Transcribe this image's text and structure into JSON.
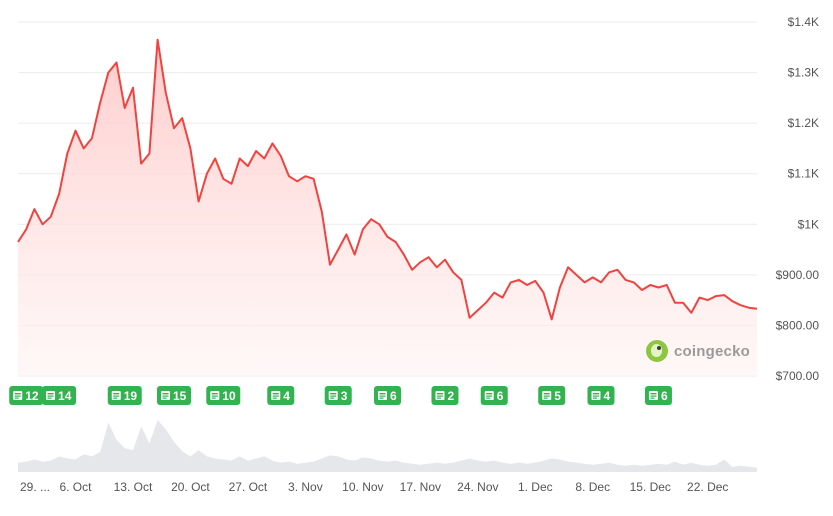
{
  "watermark": {
    "text": "coingecko"
  },
  "colors": {
    "line": "#f0433f",
    "fill_top": "#ffc7c6",
    "fill_bottom": "#fff3f3",
    "grid": "#ececec",
    "badge": "#32b34f",
    "volume": "#e6e7ea",
    "axis_text": "#555555"
  },
  "chart_data": {
    "type": "line",
    "title": "",
    "xlabel": "",
    "ylabel": "",
    "ylim": [
      700,
      1400
    ],
    "y_ticks": [
      "$700.00",
      "$800.00",
      "$900.00",
      "$1K",
      "$1.1K",
      "$1.2K",
      "$1.3K",
      "$1.4K"
    ],
    "y_tick_values": [
      700,
      800,
      900,
      1000,
      1100,
      1200,
      1300,
      1400
    ],
    "x_range": [
      "2024-09-29",
      "2024-12-28"
    ],
    "x_ticks": [
      {
        "date": "2024-09-29",
        "label": "29. ..."
      },
      {
        "date": "2024-10-06",
        "label": "6. Oct"
      },
      {
        "date": "2024-10-13",
        "label": "13. Oct"
      },
      {
        "date": "2024-10-20",
        "label": "20. Oct"
      },
      {
        "date": "2024-10-27",
        "label": "27. Oct"
      },
      {
        "date": "2024-11-03",
        "label": "3. Nov"
      },
      {
        "date": "2024-11-10",
        "label": "10. Nov"
      },
      {
        "date": "2024-11-17",
        "label": "17. Nov"
      },
      {
        "date": "2024-11-24",
        "label": "24. Nov"
      },
      {
        "date": "2024-12-01",
        "label": "1. Dec"
      },
      {
        "date": "2024-12-08",
        "label": "8. Dec"
      },
      {
        "date": "2024-12-15",
        "label": "15. Dec"
      },
      {
        "date": "2024-12-22",
        "label": "22. Dec"
      }
    ],
    "grid": true,
    "series": [
      {
        "points": [
          [
            "2024-09-29",
            965
          ],
          [
            "2024-09-30",
            990
          ],
          [
            "2024-10-01",
            1030
          ],
          [
            "2024-10-02",
            1000
          ],
          [
            "2024-10-03",
            1015
          ],
          [
            "2024-10-04",
            1060
          ],
          [
            "2024-10-05",
            1140
          ],
          [
            "2024-10-06",
            1185
          ],
          [
            "2024-10-07",
            1150
          ],
          [
            "2024-10-08",
            1170
          ],
          [
            "2024-10-09",
            1240
          ],
          [
            "2024-10-10",
            1300
          ],
          [
            "2024-10-11",
            1320
          ],
          [
            "2024-10-12",
            1230
          ],
          [
            "2024-10-13",
            1270
          ],
          [
            "2024-10-14",
            1120
          ],
          [
            "2024-10-15",
            1140
          ],
          [
            "2024-10-16",
            1365
          ],
          [
            "2024-10-17",
            1260
          ],
          [
            "2024-10-18",
            1190
          ],
          [
            "2024-10-19",
            1210
          ],
          [
            "2024-10-20",
            1150
          ],
          [
            "2024-10-21",
            1045
          ],
          [
            "2024-10-22",
            1100
          ],
          [
            "2024-10-23",
            1130
          ],
          [
            "2024-10-24",
            1090
          ],
          [
            "2024-10-25",
            1080
          ],
          [
            "2024-10-26",
            1130
          ],
          [
            "2024-10-27",
            1115
          ],
          [
            "2024-10-28",
            1145
          ],
          [
            "2024-10-29",
            1130
          ],
          [
            "2024-10-30",
            1160
          ],
          [
            "2024-10-31",
            1135
          ],
          [
            "2024-11-01",
            1095
          ],
          [
            "2024-11-02",
            1085
          ],
          [
            "2024-11-03",
            1095
          ],
          [
            "2024-11-04",
            1090
          ],
          [
            "2024-11-05",
            1025
          ],
          [
            "2024-11-06",
            920
          ],
          [
            "2024-11-07",
            950
          ],
          [
            "2024-11-08",
            980
          ],
          [
            "2024-11-09",
            940
          ],
          [
            "2024-11-10",
            990
          ],
          [
            "2024-11-11",
            1010
          ],
          [
            "2024-11-12",
            1000
          ],
          [
            "2024-11-13",
            975
          ],
          [
            "2024-11-14",
            965
          ],
          [
            "2024-11-15",
            940
          ],
          [
            "2024-11-16",
            910
          ],
          [
            "2024-11-17",
            925
          ],
          [
            "2024-11-18",
            935
          ],
          [
            "2024-11-19",
            915
          ],
          [
            "2024-11-20",
            930
          ],
          [
            "2024-11-21",
            905
          ],
          [
            "2024-11-22",
            890
          ],
          [
            "2024-11-23",
            815
          ],
          [
            "2024-11-24",
            830
          ],
          [
            "2024-11-25",
            845
          ],
          [
            "2024-11-26",
            865
          ],
          [
            "2024-11-27",
            855
          ],
          [
            "2024-11-28",
            885
          ],
          [
            "2024-11-29",
            890
          ],
          [
            "2024-11-30",
            880
          ],
          [
            "2024-12-01",
            888
          ],
          [
            "2024-12-02",
            865
          ],
          [
            "2024-12-03",
            812
          ],
          [
            "2024-12-04",
            875
          ],
          [
            "2024-12-05",
            915
          ],
          [
            "2024-12-06",
            900
          ],
          [
            "2024-12-07",
            885
          ],
          [
            "2024-12-08",
            895
          ],
          [
            "2024-12-09",
            885
          ],
          [
            "2024-12-10",
            905
          ],
          [
            "2024-12-11",
            910
          ],
          [
            "2024-12-12",
            890
          ],
          [
            "2024-12-13",
            885
          ],
          [
            "2024-12-14",
            870
          ],
          [
            "2024-12-15",
            880
          ],
          [
            "2024-12-16",
            875
          ],
          [
            "2024-12-17",
            880
          ],
          [
            "2024-12-18",
            845
          ],
          [
            "2024-12-19",
            845
          ],
          [
            "2024-12-20",
            825
          ],
          [
            "2024-12-21",
            855
          ],
          [
            "2024-12-22",
            850
          ],
          [
            "2024-12-23",
            858
          ],
          [
            "2024-12-24",
            860
          ],
          [
            "2024-12-25",
            848
          ],
          [
            "2024-12-26",
            840
          ],
          [
            "2024-12-27",
            835
          ],
          [
            "2024-12-28",
            833
          ]
        ]
      }
    ],
    "news_badges": [
      {
        "date": "2024-09-30",
        "count": "12"
      },
      {
        "date": "2024-10-04",
        "count": "14"
      },
      {
        "date": "2024-10-12",
        "count": "19"
      },
      {
        "date": "2024-10-18",
        "count": "15"
      },
      {
        "date": "2024-10-24",
        "count": "10"
      },
      {
        "date": "2024-10-31",
        "count": "4"
      },
      {
        "date": "2024-11-07",
        "count": "3"
      },
      {
        "date": "2024-11-13",
        "count": "6"
      },
      {
        "date": "2024-11-20",
        "count": "2"
      },
      {
        "date": "2024-11-26",
        "count": "6"
      },
      {
        "date": "2024-12-03",
        "count": "5"
      },
      {
        "date": "2024-12-09",
        "count": "4"
      },
      {
        "date": "2024-12-16",
        "count": "6"
      }
    ],
    "volume": {
      "points": [
        [
          "2024-09-29",
          0.18
        ],
        [
          "2024-09-30",
          0.2
        ],
        [
          "2024-10-01",
          0.24
        ],
        [
          "2024-10-02",
          0.2
        ],
        [
          "2024-10-03",
          0.22
        ],
        [
          "2024-10-04",
          0.3
        ],
        [
          "2024-10-05",
          0.26
        ],
        [
          "2024-10-06",
          0.24
        ],
        [
          "2024-10-07",
          0.34
        ],
        [
          "2024-10-08",
          0.3
        ],
        [
          "2024-10-09",
          0.38
        ],
        [
          "2024-10-10",
          0.95
        ],
        [
          "2024-10-11",
          0.62
        ],
        [
          "2024-10-12",
          0.46
        ],
        [
          "2024-10-13",
          0.42
        ],
        [
          "2024-10-14",
          0.88
        ],
        [
          "2024-10-15",
          0.55
        ],
        [
          "2024-10-16",
          1.0
        ],
        [
          "2024-10-17",
          0.82
        ],
        [
          "2024-10-18",
          0.58
        ],
        [
          "2024-10-19",
          0.4
        ],
        [
          "2024-10-20",
          0.3
        ],
        [
          "2024-10-21",
          0.42
        ],
        [
          "2024-10-22",
          0.3
        ],
        [
          "2024-10-23",
          0.26
        ],
        [
          "2024-10-24",
          0.24
        ],
        [
          "2024-10-25",
          0.22
        ],
        [
          "2024-10-26",
          0.3
        ],
        [
          "2024-10-27",
          0.22
        ],
        [
          "2024-10-28",
          0.26
        ],
        [
          "2024-10-29",
          0.3
        ],
        [
          "2024-10-30",
          0.22
        ],
        [
          "2024-10-31",
          0.18
        ],
        [
          "2024-11-01",
          0.2
        ],
        [
          "2024-11-02",
          0.16
        ],
        [
          "2024-11-03",
          0.18
        ],
        [
          "2024-11-04",
          0.2
        ],
        [
          "2024-11-05",
          0.26
        ],
        [
          "2024-11-06",
          0.32
        ],
        [
          "2024-11-07",
          0.3
        ],
        [
          "2024-11-08",
          0.24
        ],
        [
          "2024-11-09",
          0.22
        ],
        [
          "2024-11-10",
          0.28
        ],
        [
          "2024-11-11",
          0.26
        ],
        [
          "2024-11-12",
          0.22
        ],
        [
          "2024-11-13",
          0.2
        ],
        [
          "2024-11-14",
          0.22
        ],
        [
          "2024-11-15",
          0.18
        ],
        [
          "2024-11-16",
          0.16
        ],
        [
          "2024-11-17",
          0.14
        ],
        [
          "2024-11-18",
          0.16
        ],
        [
          "2024-11-19",
          0.18
        ],
        [
          "2024-11-20",
          0.16
        ],
        [
          "2024-11-21",
          0.18
        ],
        [
          "2024-11-22",
          0.22
        ],
        [
          "2024-11-23",
          0.26
        ],
        [
          "2024-11-24",
          0.22
        ],
        [
          "2024-11-25",
          0.2
        ],
        [
          "2024-11-26",
          0.22
        ],
        [
          "2024-11-27",
          0.18
        ],
        [
          "2024-11-28",
          0.16
        ],
        [
          "2024-11-29",
          0.18
        ],
        [
          "2024-11-30",
          0.16
        ],
        [
          "2024-12-01",
          0.18
        ],
        [
          "2024-12-02",
          0.22
        ],
        [
          "2024-12-03",
          0.26
        ],
        [
          "2024-12-04",
          0.24
        ],
        [
          "2024-12-05",
          0.2
        ],
        [
          "2024-12-06",
          0.18
        ],
        [
          "2024-12-07",
          0.16
        ],
        [
          "2024-12-08",
          0.14
        ],
        [
          "2024-12-09",
          0.16
        ],
        [
          "2024-12-10",
          0.18
        ],
        [
          "2024-12-11",
          0.14
        ],
        [
          "2024-12-12",
          0.12
        ],
        [
          "2024-12-13",
          0.14
        ],
        [
          "2024-12-14",
          0.12
        ],
        [
          "2024-12-15",
          0.14
        ],
        [
          "2024-12-16",
          0.16
        ],
        [
          "2024-12-17",
          0.14
        ],
        [
          "2024-12-18",
          0.2
        ],
        [
          "2024-12-19",
          0.14
        ],
        [
          "2024-12-20",
          0.18
        ],
        [
          "2024-12-21",
          0.14
        ],
        [
          "2024-12-22",
          0.12
        ],
        [
          "2024-12-23",
          0.14
        ],
        [
          "2024-12-24",
          0.24
        ],
        [
          "2024-12-25",
          0.1
        ],
        [
          "2024-12-26",
          0.12
        ],
        [
          "2024-12-27",
          0.1
        ],
        [
          "2024-12-28",
          0.08
        ]
      ]
    }
  }
}
